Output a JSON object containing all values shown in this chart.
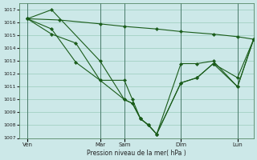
{
  "background_color": "#cce8e8",
  "grid_color": "#99ccbb",
  "line_color": "#1a5c1a",
  "marker_color": "#1a5c1a",
  "title": "Pression niveau de la mer( hPa )",
  "ylim": [
    1007,
    1017.5
  ],
  "yticks": [
    1007,
    1008,
    1009,
    1010,
    1011,
    1012,
    1013,
    1014,
    1015,
    1016,
    1017
  ],
  "x_tick_labels": [
    "Ven",
    "Mar",
    "Sam",
    "Dim",
    "Lun"
  ],
  "x_tick_positions": [
    0,
    9,
    12,
    19,
    26
  ],
  "xlim": [
    -1,
    28
  ],
  "vlines": [
    0,
    9,
    12,
    19,
    26
  ],
  "series": [
    {
      "x": [
        0,
        4,
        9,
        12,
        16,
        19,
        23,
        26,
        28
      ],
      "y": [
        1016.3,
        1016.2,
        1015.9,
        1015.7,
        1015.5,
        1015.3,
        1015.1,
        1014.9,
        1014.7
      ]
    },
    {
      "x": [
        0,
        3,
        9,
        12,
        13,
        14,
        15,
        16,
        19,
        21,
        23,
        26,
        28
      ],
      "y": [
        1016.3,
        1017.0,
        1013.0,
        1010.0,
        1009.7,
        1008.5,
        1008.0,
        1007.3,
        1011.3,
        1011.7,
        1012.8,
        1011.0,
        1014.7
      ]
    },
    {
      "x": [
        0,
        3,
        6,
        9,
        12,
        13,
        14,
        15,
        16,
        19,
        21,
        23,
        26,
        28
      ],
      "y": [
        1016.3,
        1015.1,
        1014.4,
        1011.5,
        1011.5,
        1010.0,
        1008.5,
        1008.0,
        1007.3,
        1011.3,
        1011.7,
        1012.8,
        1011.7,
        1014.7
      ]
    },
    {
      "x": [
        0,
        3,
        6,
        9,
        12,
        13,
        14,
        15,
        16,
        19,
        21,
        23,
        26,
        28
      ],
      "y": [
        1016.3,
        1015.5,
        1012.9,
        1011.5,
        1010.0,
        1009.7,
        1008.5,
        1008.0,
        1007.3,
        1012.8,
        1012.8,
        1013.0,
        1011.0,
        1014.7
      ]
    }
  ]
}
